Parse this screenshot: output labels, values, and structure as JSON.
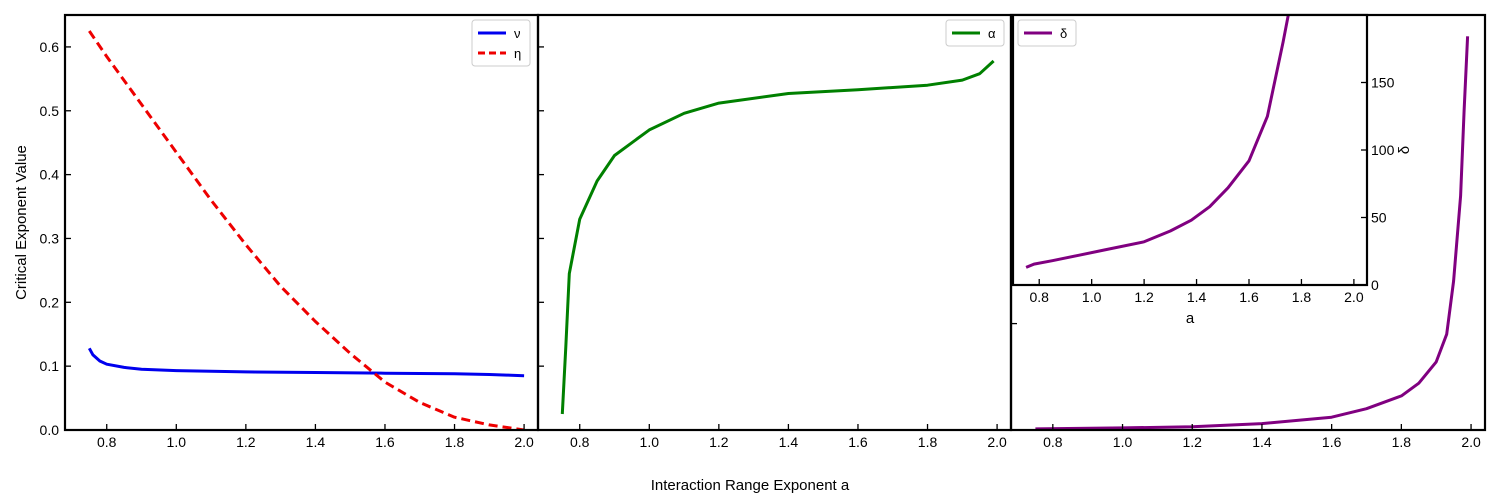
{
  "figure": {
    "shared_xlabel": "Interaction Range Exponent a"
  },
  "colors": {
    "nu": "#0000ee",
    "eta": "#ee0000",
    "alpha": "#008000",
    "delta": "#800080"
  },
  "chart_data": [
    {
      "type": "line",
      "title": "",
      "xlabel": "",
      "ylabel": "Critical Exponent Value",
      "xlim": [
        0.68,
        2.04
      ],
      "ylim": [
        0.0,
        0.65
      ],
      "xticks": [
        0.8,
        1.0,
        1.2,
        1.4,
        1.6,
        1.8,
        2.0
      ],
      "xtick_labels": [
        "0.8",
        "1.0",
        "1.2",
        "1.4",
        "1.6",
        "1.8",
        "2.0"
      ],
      "yticks": [
        0.0,
        0.1,
        0.2,
        0.3,
        0.4,
        0.5,
        0.6
      ],
      "ytick_labels": [
        "0.0",
        "0.1",
        "0.2",
        "0.3",
        "0.4",
        "0.5",
        "0.6"
      ],
      "legend_position": "top-right",
      "series": [
        {
          "name": "ν",
          "color_key": "nu",
          "style": "solid",
          "points": [
            [
              0.75,
              0.128
            ],
            [
              0.76,
              0.118
            ],
            [
              0.78,
              0.108
            ],
            [
              0.8,
              0.103
            ],
            [
              0.85,
              0.098
            ],
            [
              0.9,
              0.095
            ],
            [
              1.0,
              0.093
            ],
            [
              1.2,
              0.091
            ],
            [
              1.4,
              0.09
            ],
            [
              1.6,
              0.089
            ],
            [
              1.8,
              0.088
            ],
            [
              1.9,
              0.087
            ],
            [
              1.95,
              0.086
            ],
            [
              2.0,
              0.085
            ]
          ]
        },
        {
          "name": "η",
          "color_key": "eta",
          "style": "dashed",
          "points": [
            [
              0.75,
              0.625
            ],
            [
              0.8,
              0.585
            ],
            [
              0.9,
              0.51
            ],
            [
              1.0,
              0.435
            ],
            [
              1.1,
              0.36
            ],
            [
              1.2,
              0.29
            ],
            [
              1.3,
              0.225
            ],
            [
              1.4,
              0.17
            ],
            [
              1.5,
              0.12
            ],
            [
              1.6,
              0.075
            ],
            [
              1.7,
              0.043
            ],
            [
              1.8,
              0.02
            ],
            [
              1.9,
              0.008
            ],
            [
              2.0,
              0.0
            ]
          ]
        }
      ]
    },
    {
      "type": "line",
      "title": "",
      "xlabel": "",
      "ylabel": "",
      "xlim": [
        0.68,
        2.04
      ],
      "ylim": [
        0.0,
        0.65
      ],
      "xticks": [
        0.8,
        1.0,
        1.2,
        1.4,
        1.6,
        1.8,
        2.0
      ],
      "xtick_labels": [
        "0.8",
        "1.0",
        "1.2",
        "1.4",
        "1.6",
        "1.8",
        "2.0"
      ],
      "yticks": [
        0.0,
        0.1,
        0.2,
        0.3,
        0.4,
        0.5,
        0.6
      ],
      "ytick_labels": [],
      "legend_position": "top-right",
      "series": [
        {
          "name": "α",
          "color_key": "alpha",
          "style": "solid",
          "points": [
            [
              0.75,
              0.025
            ],
            [
              0.76,
              0.13
            ],
            [
              0.77,
              0.245
            ],
            [
              0.8,
              0.33
            ],
            [
              0.85,
              0.39
            ],
            [
              0.9,
              0.43
            ],
            [
              1.0,
              0.47
            ],
            [
              1.1,
              0.496
            ],
            [
              1.2,
              0.512
            ],
            [
              1.4,
              0.527
            ],
            [
              1.6,
              0.533
            ],
            [
              1.8,
              0.54
            ],
            [
              1.9,
              0.548
            ],
            [
              1.95,
              0.558
            ],
            [
              1.99,
              0.578
            ]
          ]
        }
      ]
    },
    {
      "type": "line",
      "title": "",
      "xlabel": "",
      "ylabel": "",
      "xlim": [
        0.68,
        2.04
      ],
      "ylim": [
        0,
        195
      ],
      "xticks": [
        0.8,
        1.0,
        1.2,
        1.4,
        1.6,
        1.8,
        2.0
      ],
      "xtick_labels": [
        "0.8",
        "1.0",
        "1.2",
        "1.4",
        "1.6",
        "1.8",
        "2.0"
      ],
      "yticks": [
        0,
        50,
        100,
        150
      ],
      "ytick_labels": [],
      "legend_position": "",
      "series": [
        {
          "name": "",
          "color_key": "delta",
          "style": "solid",
          "points": [
            [
              0.75,
              0.5
            ],
            [
              1.0,
              1.0
            ],
            [
              1.2,
              1.5
            ],
            [
              1.4,
              3.0
            ],
            [
              1.6,
              6.0
            ],
            [
              1.7,
              10.0
            ],
            [
              1.8,
              16.0
            ],
            [
              1.85,
              22.0
            ],
            [
              1.9,
              32.0
            ],
            [
              1.93,
              45.0
            ],
            [
              1.95,
              70.0
            ],
            [
              1.97,
              110.0
            ],
            [
              1.98,
              150.0
            ],
            [
              1.99,
              185.0
            ]
          ]
        }
      ]
    },
    {
      "type": "line",
      "title": "",
      "xlabel": "a",
      "ylabel": "δ",
      "xlim": [
        0.7,
        2.05
      ],
      "ylim": [
        0,
        200
      ],
      "xticks": [
        0.8,
        1.0,
        1.2,
        1.4,
        1.6,
        1.8,
        2.0
      ],
      "xtick_labels": [
        "0.8",
        "1.0",
        "1.2",
        "1.4",
        "1.6",
        "1.8",
        "2.0"
      ],
      "yticks": [
        0,
        50,
        100,
        150
      ],
      "ytick_labels": [
        "0",
        "50",
        "100",
        "150"
      ],
      "legend_position": "top-left",
      "series": [
        {
          "name": "δ",
          "color_key": "delta",
          "style": "solid",
          "points": [
            [
              0.75,
              13
            ],
            [
              0.78,
              15.5
            ],
            [
              0.85,
              18
            ],
            [
              0.95,
              22
            ],
            [
              1.05,
              26
            ],
            [
              1.2,
              32
            ],
            [
              1.3,
              40
            ],
            [
              1.38,
              48
            ],
            [
              1.45,
              58
            ],
            [
              1.52,
              72
            ],
            [
              1.6,
              92
            ],
            [
              1.67,
              125
            ],
            [
              1.73,
              180
            ],
            [
              1.75,
              200
            ]
          ]
        }
      ]
    }
  ]
}
